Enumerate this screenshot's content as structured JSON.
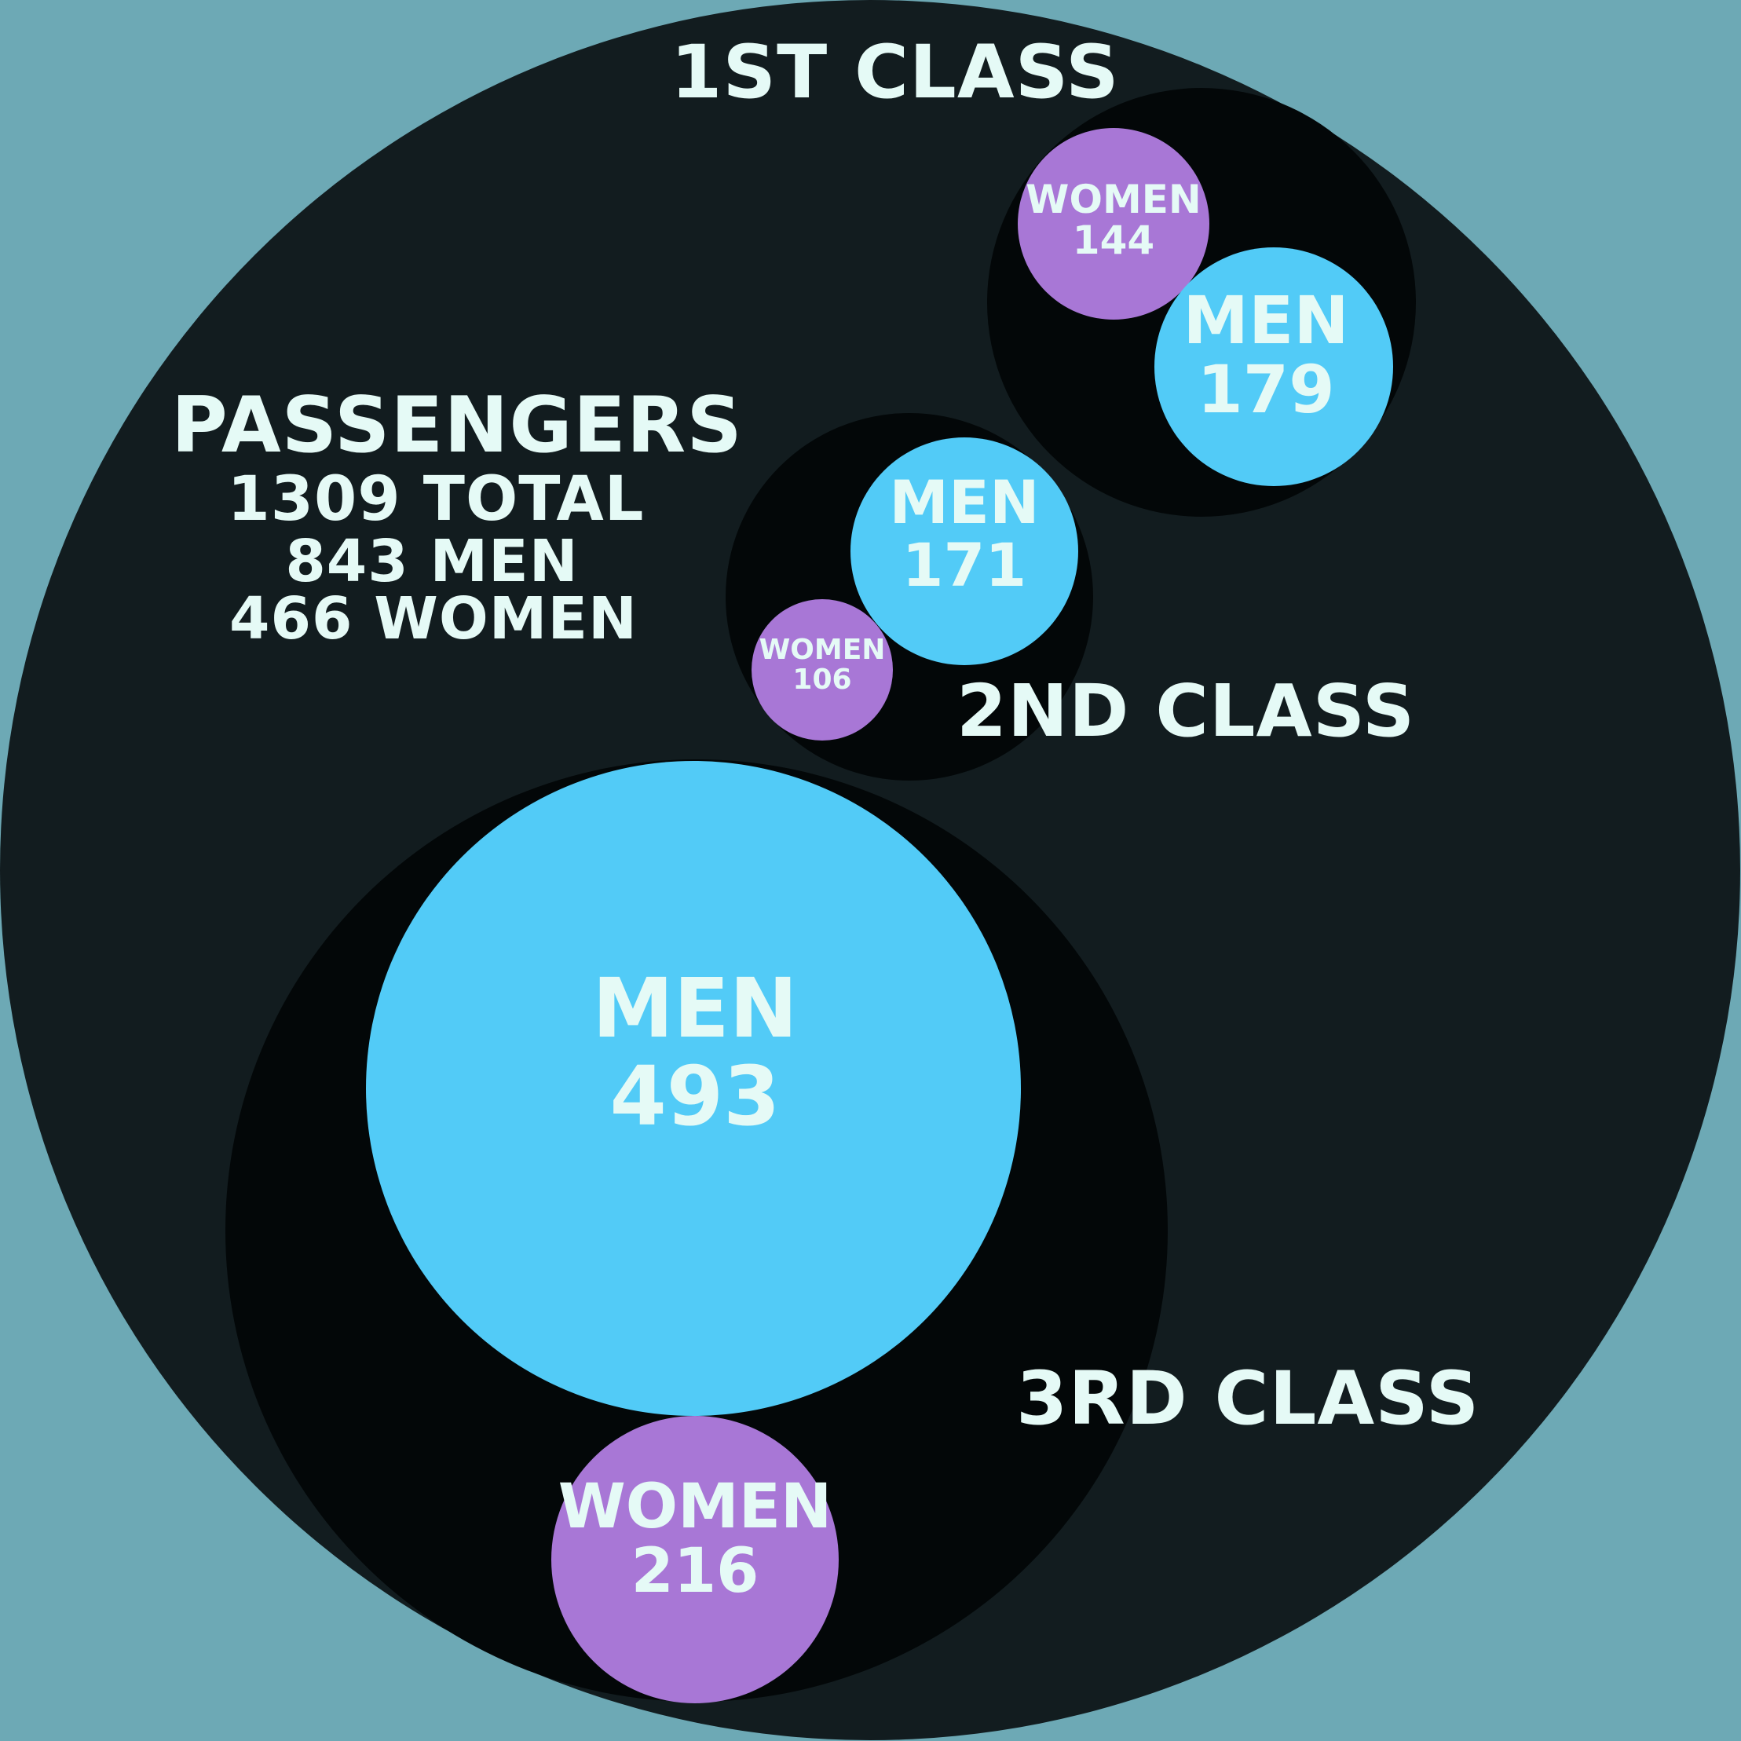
{
  "colors": {
    "background": "#6da9b5",
    "outer_circle": "#121c1f",
    "class_circle": "#030708",
    "men": "#52cbf7",
    "women": "#a877d6",
    "text": "#e5faf6"
  },
  "summary": {
    "title": "PASSENGERS",
    "total": "1309 TOTAL",
    "men": "843 MEN",
    "women": "466 WOMEN"
  },
  "classes": {
    "first": {
      "label": "1ST CLASS",
      "men": {
        "label": "MEN",
        "value": "179"
      },
      "women": {
        "label": "WOMEN",
        "value": "144"
      }
    },
    "second": {
      "label": "2ND CLASS",
      "men": {
        "label": "MEN",
        "value": "171"
      },
      "women": {
        "label": "WOMEN",
        "value": "106"
      }
    },
    "third": {
      "label": "3RD CLASS",
      "men": {
        "label": "MEN",
        "value": "493"
      },
      "women": {
        "label": "WOMEN",
        "value": "216"
      }
    }
  }
}
